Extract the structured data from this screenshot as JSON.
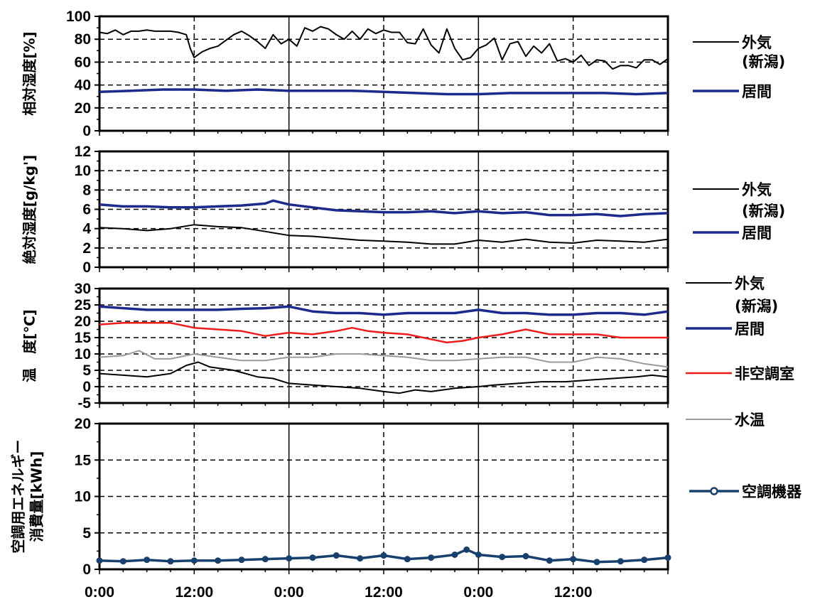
{
  "x_tick_labels": [
    "0:00",
    "12:00",
    "0:00",
    "12:00",
    "0:00",
    "12:00"
  ],
  "colors": {
    "outdoor": "#000000",
    "living": "#1c2a8c",
    "unconditioned": "#ee1c1c",
    "water": "#9a9a9a",
    "hvac": "#17406e"
  },
  "chart_data": [
    {
      "type": "line",
      "ylabel": "相対湿度[%]",
      "ylim": [
        0,
        100
      ],
      "yticks": [
        0,
        20,
        40,
        60,
        80,
        100
      ],
      "x_unit": "hours",
      "xlim": [
        0,
        72
      ],
      "grid": true,
      "legend": [
        "外気",
        "(新潟)",
        "居間"
      ],
      "series": [
        {
          "name": "外気(新潟)",
          "key": "outdoor",
          "x": [
            0,
            1,
            2,
            3,
            4,
            5,
            6,
            7,
            8,
            9,
            10,
            11,
            11.5,
            12,
            13,
            14,
            15,
            16,
            17,
            18,
            19,
            20,
            21,
            22,
            23,
            24,
            25,
            26,
            27,
            28,
            29,
            30,
            31,
            32,
            33,
            34,
            35,
            36,
            37,
            38,
            39,
            40,
            41,
            42,
            43,
            44,
            45,
            46,
            47,
            48,
            49,
            50,
            51,
            52,
            53,
            54,
            55,
            56,
            57,
            58,
            59,
            60,
            61,
            62,
            63,
            64,
            65,
            66,
            67,
            68,
            69,
            70,
            71,
            72
          ],
          "values": [
            86,
            85,
            88,
            84,
            87,
            87,
            88,
            87,
            87,
            87,
            86,
            84,
            72,
            64,
            69,
            72,
            74,
            79,
            84,
            87,
            83,
            78,
            72,
            84,
            76,
            80,
            74,
            90,
            87,
            91,
            89,
            84,
            80,
            87,
            80,
            89,
            85,
            88,
            86,
            86,
            77,
            76,
            89,
            75,
            68,
            89,
            72,
            62,
            64,
            72,
            75,
            81,
            62,
            76,
            78,
            65,
            74,
            68,
            76,
            61,
            63,
            60,
            66,
            57,
            62,
            61,
            54,
            57,
            57,
            55,
            62,
            62,
            58,
            63
          ]
        },
        {
          "name": "居間",
          "key": "living",
          "x": [
            0,
            4,
            8,
            12,
            16,
            20,
            24,
            28,
            32,
            36,
            40,
            44,
            48,
            52,
            56,
            60,
            64,
            68,
            72
          ],
          "values": [
            34,
            35,
            36,
            36,
            35,
            36,
            35,
            35,
            35,
            34,
            33,
            32,
            32,
            33,
            33,
            33,
            33,
            32,
            33
          ]
        }
      ]
    },
    {
      "type": "line",
      "ylabel": "絶対湿度[g/kg']",
      "ylim": [
        0,
        12
      ],
      "yticks": [
        0,
        2,
        4,
        6,
        8,
        10,
        12
      ],
      "x_unit": "hours",
      "xlim": [
        0,
        72
      ],
      "grid": true,
      "legend": [
        "外気",
        "(新潟)",
        "居間"
      ],
      "series": [
        {
          "name": "外気(新潟)",
          "key": "outdoor",
          "x": [
            0,
            3,
            6,
            9,
            12,
            15,
            18,
            21,
            24,
            27,
            30,
            33,
            36,
            39,
            42,
            45,
            48,
            51,
            54,
            57,
            60,
            63,
            66,
            69,
            72
          ],
          "values": [
            4.1,
            4.0,
            3.8,
            4.0,
            4.4,
            4.2,
            4.1,
            3.7,
            3.3,
            3.2,
            3.0,
            2.8,
            2.7,
            2.6,
            2.4,
            2.4,
            2.8,
            2.6,
            2.9,
            2.6,
            2.5,
            2.8,
            2.7,
            2.6,
            2.9
          ]
        },
        {
          "name": "居間",
          "key": "living",
          "x": [
            0,
            3,
            6,
            9,
            12,
            15,
            18,
            21,
            22,
            24,
            27,
            30,
            33,
            36,
            39,
            42,
            45,
            48,
            51,
            54,
            57,
            60,
            63,
            66,
            69,
            72
          ],
          "values": [
            6.5,
            6.3,
            6.3,
            6.2,
            6.2,
            6.3,
            6.4,
            6.6,
            6.9,
            6.5,
            6.2,
            5.9,
            5.8,
            5.7,
            5.7,
            5.8,
            5.6,
            5.8,
            5.6,
            5.7,
            5.4,
            5.4,
            5.5,
            5.3,
            5.5,
            5.6
          ]
        }
      ]
    },
    {
      "type": "line",
      "ylabel": "温　度[℃]",
      "ylim": [
        -5,
        30
      ],
      "yticks": [
        -5,
        0,
        5,
        10,
        15,
        20,
        25,
        30
      ],
      "x_unit": "hours",
      "xlim": [
        0,
        72
      ],
      "grid": true,
      "legend": [
        "外気",
        "(新潟)",
        "居間",
        "非空調室",
        "水温"
      ],
      "series": [
        {
          "name": "外気(新潟)",
          "key": "outdoor",
          "x": [
            0,
            3,
            6,
            9,
            11,
            12.5,
            14,
            17,
            20,
            22,
            24,
            27,
            30,
            33,
            36,
            38,
            40,
            42,
            45,
            48,
            50,
            53,
            56,
            59,
            62,
            65,
            68,
            70,
            72
          ],
          "values": [
            4,
            3.5,
            3,
            4,
            6.5,
            7.5,
            6,
            5,
            3,
            2.5,
            1,
            0.5,
            0,
            -0.5,
            -1.5,
            -2,
            -1,
            -1.5,
            -0.5,
            0,
            0.5,
            1,
            1.5,
            1.5,
            2,
            2.5,
            3,
            3.5,
            3
          ]
        },
        {
          "name": "居間",
          "key": "living",
          "x": [
            0,
            3,
            6,
            9,
            12,
            15,
            18,
            21,
            24,
            27,
            30,
            33,
            36,
            39,
            42,
            45,
            48,
            51,
            54,
            57,
            60,
            63,
            66,
            69,
            72
          ],
          "values": [
            24.5,
            24,
            23.5,
            23.5,
            23.5,
            23.5,
            23.8,
            24,
            24.5,
            23,
            22.5,
            22.5,
            22,
            22.5,
            22.5,
            22.5,
            23.5,
            22.5,
            22.5,
            22,
            22,
            22.5,
            22.5,
            22,
            23
          ]
        },
        {
          "name": "非空調室",
          "key": "unconditioned",
          "x": [
            0,
            3,
            6,
            9,
            12,
            15,
            18,
            21,
            24,
            27,
            30,
            32,
            34,
            36,
            39,
            42,
            44,
            46,
            48,
            51,
            54,
            57,
            60,
            63,
            66,
            69,
            72
          ],
          "values": [
            19,
            19.5,
            19.5,
            19.5,
            18,
            17.5,
            17,
            15.5,
            16.5,
            16,
            17,
            18,
            17,
            16.5,
            16,
            14.5,
            13.5,
            14,
            15,
            16,
            17.5,
            16,
            16,
            16,
            15,
            15,
            15
          ]
        },
        {
          "name": "水温",
          "key": "water",
          "x": [
            0,
            3,
            5,
            7,
            9,
            12,
            15,
            18,
            21,
            24,
            27,
            30,
            33,
            36,
            39,
            42,
            45,
            48,
            51,
            54,
            57,
            60,
            63,
            66,
            69,
            72
          ],
          "values": [
            9,
            9.5,
            11,
            8.5,
            8.5,
            10,
            9,
            8,
            8,
            9,
            9,
            10,
            10,
            9.5,
            9,
            8,
            8,
            8.5,
            9,
            9,
            7.5,
            7.5,
            9,
            8.5,
            7,
            6
          ]
        }
      ]
    },
    {
      "type": "line",
      "ylabel": [
        "空調用エネルギー",
        "消費量[kWh]"
      ],
      "ylim": [
        0,
        20
      ],
      "yticks": [
        0,
        5,
        10,
        15,
        20
      ],
      "x_unit": "hours",
      "xlim": [
        0,
        72
      ],
      "grid": true,
      "legend": [
        "空調機器"
      ],
      "series": [
        {
          "name": "空調機器",
          "key": "hvac",
          "marker": "circle",
          "x": [
            0,
            3,
            6,
            9,
            12,
            15,
            18,
            21,
            24,
            27,
            30,
            33,
            36,
            39,
            42,
            45,
            46.5,
            48,
            51,
            54,
            57,
            60,
            63,
            66,
            69,
            72
          ],
          "values": [
            1.2,
            1.1,
            1.3,
            1.1,
            1.2,
            1.2,
            1.3,
            1.4,
            1.5,
            1.6,
            1.9,
            1.5,
            1.9,
            1.4,
            1.6,
            2.0,
            2.7,
            2.0,
            1.7,
            1.8,
            1.2,
            1.4,
            1.0,
            1.1,
            1.3,
            1.6
          ]
        }
      ]
    }
  ]
}
